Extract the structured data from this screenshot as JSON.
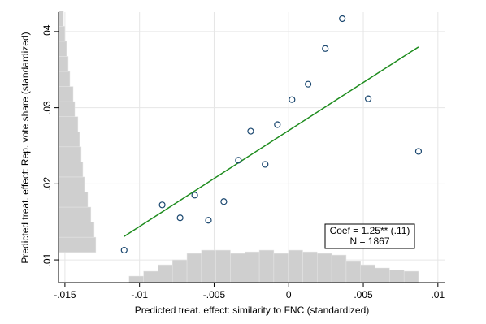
{
  "chart_data": {
    "type": "scatter",
    "xlabel": "Predicted treat. effect: similarity to FNC (standardized)",
    "ylabel": "Predicted treat. effect: Rep. vote share (standardized)",
    "xlim": [
      -0.01543,
      0.0105
    ],
    "ylim": [
      0.00702,
      0.04255
    ],
    "xticks": [
      {
        "value": -0.015,
        "label": "-.015"
      },
      {
        "value": -0.01,
        "label": "-.01"
      },
      {
        "value": -0.005,
        "label": "-.005"
      },
      0,
      {
        "value": 0.005,
        "label": ".005"
      },
      {
        "value": 0.01,
        "label": ".01"
      }
    ],
    "yticks": [
      {
        "value": 0.01,
        "label": ".01"
      },
      {
        "value": 0.02,
        "label": ".02"
      },
      {
        "value": 0.03,
        "label": ".03"
      },
      {
        "value": 0.04,
        "label": ".04"
      }
    ],
    "grid": true,
    "series": [
      {
        "color": "#1a476f",
        "x": [
          -0.01103,
          -0.00848,
          -0.00728,
          -0.0063,
          -0.00538,
          -0.00435,
          -0.00337,
          -0.00255,
          -0.00158,
          -0.00076,
          0.00022,
          0.0013,
          0.00245,
          0.00359,
          0.00533,
          0.0087
        ],
        "values": [
          0.01128,
          0.01723,
          0.01553,
          0.01851,
          0.01521,
          0.01766,
          0.02309,
          0.02691,
          0.02255,
          0.02777,
          0.03106,
          0.03309,
          0.03777,
          0.0417,
          0.03117,
          0.02426
        ]
      }
    ],
    "fit_line": {
      "color": "#1e8c1e",
      "x": [
        -0.01103,
        0.0087
      ],
      "values": [
        0.01309,
        0.03798
      ]
    },
    "x_histogram": {
      "color": "#cfcfcf",
      "bins": [
        -0.0107,
        -0.00973,
        -0.00876,
        -0.00779,
        -0.00682,
        -0.00585,
        -0.00488,
        -0.00391,
        -0.00294,
        -0.00197,
        -0.001,
        -3e-05,
        0.00094,
        0.00191,
        0.00288,
        0.00385,
        0.00482,
        0.00579,
        0.00676,
        0.00773,
        0.0087
      ],
      "values": [
        0.00787,
        0.00851,
        0.00936,
        0.01,
        0.01085,
        0.01128,
        0.01128,
        0.01085,
        0.01106,
        0.01128,
        0.01085,
        0.01128,
        0.01106,
        0.01085,
        0.01064,
        0.00979,
        0.00936,
        0.00894,
        0.0087,
        0.00851
      ]
    },
    "y_histogram": {
      "color": "#cfcfcf",
      "bins": [
        0.011,
        0.01298,
        0.01496,
        0.01694,
        0.01892,
        0.0209,
        0.02288,
        0.02486,
        0.02684,
        0.02882,
        0.0308,
        0.03278,
        0.03476,
        0.03674,
        0.03872,
        0.0407,
        0.04268
      ],
      "values": [
        -0.01293,
        -0.01304,
        -0.01326,
        -0.01347,
        -0.01369,
        -0.0138,
        -0.01391,
        -0.01402,
        -0.01413,
        -0.01434,
        -0.01445,
        -0.01467,
        -0.01478,
        -0.01489,
        -0.015,
        -0.0151
      ]
    },
    "annotations": [
      "Coef = 1.25** (.11)",
      "N = 1867"
    ]
  }
}
